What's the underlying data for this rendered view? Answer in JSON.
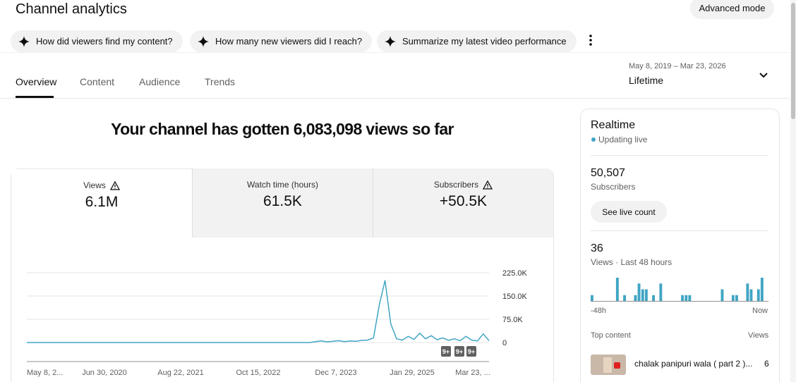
{
  "header": {
    "title": "Channel analytics",
    "advanced_mode": "Advanced mode"
  },
  "suggestions": [
    "How did viewers find my content?",
    "How many new viewers did I reach?",
    "Summarize my latest video performance"
  ],
  "tabs": [
    "Overview",
    "Content",
    "Audience",
    "Trends"
  ],
  "date_range": {
    "range": "May 8, 2019 – Mar 23, 2026",
    "label": "Lifetime"
  },
  "headline": "Your channel has gotten 6,083,098 views so far",
  "metrics": [
    {
      "label": "Views",
      "value": "6.1M"
    },
    {
      "label": "Watch time (hours)",
      "value": "61.5K"
    },
    {
      "label": "Subscribers",
      "value": "+50.5K"
    }
  ],
  "chart_data": {
    "type": "line",
    "color": "#41a5c4",
    "xtick_labels": [
      "May 8, 2...",
      "Jun 30, 2020",
      "Aug 22, 2021",
      "Oct 15, 2022",
      "Dec 7, 2023",
      "Jan 29, 2025",
      "Mar 23, ..."
    ],
    "values": [
      0,
      0,
      0,
      0,
      0,
      0,
      0,
      0,
      0,
      0,
      0,
      0,
      0,
      0,
      0,
      0,
      0,
      0,
      0,
      0,
      0,
      0,
      0,
      0,
      0,
      0,
      0,
      0,
      0,
      0,
      0,
      0,
      0,
      0,
      0,
      0,
      0,
      0,
      0,
      0,
      0,
      0,
      0,
      0,
      0,
      0,
      0,
      0,
      0,
      0,
      3000,
      5000,
      2000,
      4000,
      6000,
      3000,
      5000,
      4000,
      7000,
      8000,
      15000,
      120000,
      200000,
      60000,
      12000,
      8000,
      20000,
      10000,
      30000,
      12000,
      22000,
      9000,
      15000,
      7000,
      12000,
      6000,
      20000,
      8000,
      5000,
      28000,
      6000
    ],
    "ylim": [
      0,
      225000
    ],
    "yticks": [
      0,
      {
        "value": 75000,
        "label": "75.0K"
      },
      {
        "value": 150000,
        "label": "150.0K"
      },
      {
        "value": 225000,
        "label": "225.0K"
      }
    ],
    "grid": true,
    "badges": [
      "9+",
      "9+",
      "9+"
    ]
  },
  "realtime": {
    "title": "Realtime",
    "status": "Updating live",
    "subscribers": "50,507",
    "subscribers_label": "Subscribers",
    "button": "See live count",
    "views": "36",
    "views_label": "Views · Last 48 hours",
    "chart": {
      "type": "bar",
      "color": "#41a5c4",
      "values": [
        1,
        0,
        0,
        0,
        0,
        0,
        0,
        4,
        0,
        1,
        0,
        0,
        1,
        3,
        2,
        2,
        0,
        1,
        0,
        3,
        0,
        0,
        0,
        0,
        0,
        1,
        1,
        1,
        0,
        0,
        0,
        0,
        0,
        0,
        0,
        0,
        2,
        0,
        0,
        1,
        1,
        0,
        0,
        3,
        2,
        0,
        2,
        4
      ],
      "start_label": "-48h",
      "end_label": "Now"
    },
    "top_content": {
      "title": "Top content",
      "column": "Views",
      "items": [
        {
          "title": "chalak panipuri wala ( part 2 )...",
          "views": "6"
        }
      ]
    }
  }
}
